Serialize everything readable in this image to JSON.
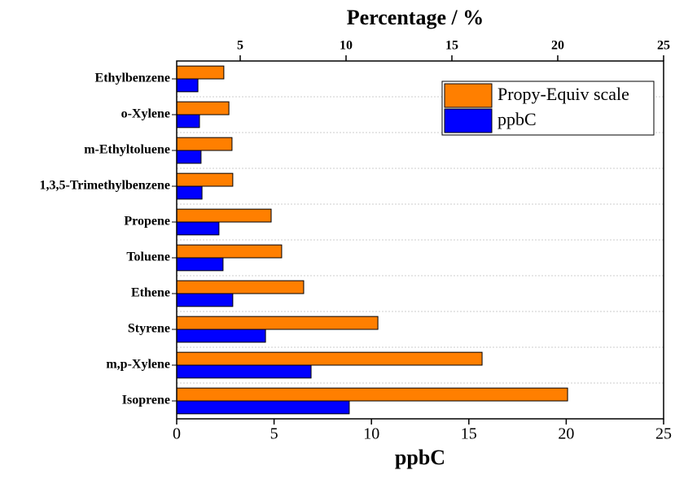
{
  "chart_data": {
    "type": "hbar",
    "xlabel": "ppbC",
    "x2label": "Percentage / %",
    "categories": [
      "Ethylbenzene",
      "o-Xylene",
      "m-Ethyltoluene",
      "1,3,5-Trimethylbenzene",
      "Propene",
      "Toluene",
      "Ethene",
      "Styrene",
      "m,p-Xylene",
      "Isoprene"
    ],
    "series": [
      {
        "name": "Propy-Equiv scale",
        "color": "#ff7f00",
        "values": [
          2.42,
          2.68,
          2.84,
          2.88,
          4.85,
          5.39,
          6.52,
          10.33,
          15.68,
          20.07
        ]
      },
      {
        "name": "ppbC",
        "color": "#0000ff",
        "values": [
          1.09,
          1.17,
          1.25,
          1.3,
          2.17,
          2.38,
          2.88,
          4.56,
          6.9,
          8.86
        ]
      }
    ],
    "xlim": [
      0,
      25
    ],
    "xticks": [
      0,
      5,
      10,
      15,
      20,
      25
    ],
    "x2lim": [
      2,
      25
    ],
    "x2ticks": [
      5,
      10,
      15,
      20,
      25
    ],
    "grid": true,
    "legend": "upper right"
  }
}
